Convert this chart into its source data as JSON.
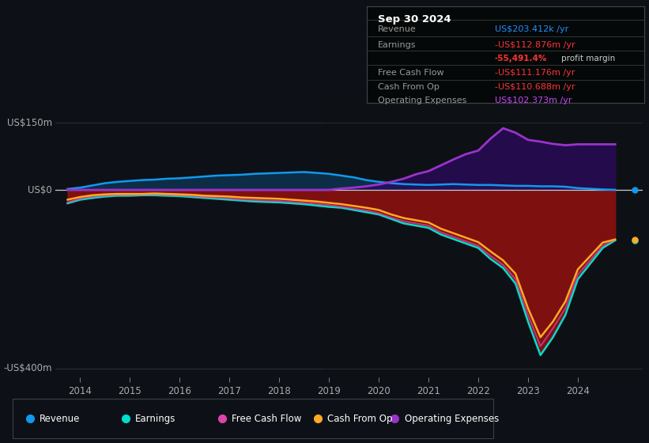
{
  "bg_color": "#0d1117",
  "plot_bg_color": "#0d1117",
  "ylim": [
    -420,
    200
  ],
  "xlim_start": 2013.5,
  "xlim_end": 2025.3,
  "xticks": [
    2014,
    2015,
    2016,
    2017,
    2018,
    2019,
    2020,
    2021,
    2022,
    2023,
    2024
  ],
  "ylabel_pos": "US$150m",
  "ylabel_neg": "-US$400m",
  "y_zero_label": "US$0",
  "info_box": {
    "date": "Sep 30 2024",
    "rows": [
      {
        "label": "Revenue",
        "value": "US$203.412k /yr",
        "vcolor": "#1e90ff"
      },
      {
        "label": "Earnings",
        "value": "-US$112.876m /yr",
        "vcolor": "#ff3333"
      },
      {
        "label": "",
        "value": "-55,491.4% profit margin",
        "vcolor": "#ff3333"
      },
      {
        "label": "Free Cash Flow",
        "value": "-US$111.176m /yr",
        "vcolor": "#ff3333"
      },
      {
        "label": "Cash From Op",
        "value": "-US$110.688m /yr",
        "vcolor": "#ff3333"
      },
      {
        "label": "Operating Expenses",
        "value": "US$102.373m /yr",
        "vcolor": "#cc44ff"
      }
    ]
  },
  "legend": [
    {
      "label": "Revenue",
      "color": "#1199ee"
    },
    {
      "label": "Earnings",
      "color": "#00ddcc"
    },
    {
      "label": "Free Cash Flow",
      "color": "#dd44aa"
    },
    {
      "label": "Cash From Op",
      "color": "#ffaa22"
    },
    {
      "label": "Operating Expenses",
      "color": "#9933cc"
    }
  ],
  "series": {
    "years": [
      2013.75,
      2014.0,
      2014.25,
      2014.5,
      2014.75,
      2015.0,
      2015.25,
      2015.5,
      2015.75,
      2016.0,
      2016.25,
      2016.5,
      2016.75,
      2017.0,
      2017.25,
      2017.5,
      2017.75,
      2018.0,
      2018.25,
      2018.5,
      2018.75,
      2019.0,
      2019.25,
      2019.5,
      2019.75,
      2020.0,
      2020.25,
      2020.5,
      2020.75,
      2021.0,
      2021.25,
      2021.5,
      2021.75,
      2022.0,
      2022.25,
      2022.5,
      2022.75,
      2023.0,
      2023.25,
      2023.5,
      2023.75,
      2024.0,
      2024.5,
      2024.75
    ],
    "revenue": [
      2,
      5,
      10,
      15,
      18,
      20,
      22,
      23,
      25,
      26,
      28,
      30,
      32,
      33,
      34,
      36,
      37,
      38,
      39,
      40,
      38,
      36,
      32,
      28,
      22,
      18,
      15,
      13,
      12,
      11,
      12,
      13,
      12,
      11,
      11,
      10,
      9,
      9,
      8,
      8,
      7,
      4,
      1,
      0.2
    ],
    "earnings": [
      -30,
      -22,
      -18,
      -15,
      -13,
      -13,
      -12,
      -12,
      -13,
      -14,
      -16,
      -18,
      -20,
      -22,
      -24,
      -26,
      -27,
      -28,
      -30,
      -32,
      -35,
      -38,
      -40,
      -45,
      -50,
      -55,
      -65,
      -75,
      -80,
      -85,
      -100,
      -110,
      -120,
      -130,
      -155,
      -175,
      -210,
      -295,
      -370,
      -330,
      -280,
      -200,
      -130,
      -113
    ],
    "free_cash_flow": [
      -28,
      -20,
      -15,
      -13,
      -11,
      -11,
      -11,
      -10,
      -11,
      -12,
      -14,
      -16,
      -18,
      -19,
      -22,
      -23,
      -24,
      -25,
      -27,
      -29,
      -31,
      -34,
      -38,
      -42,
      -46,
      -52,
      -62,
      -70,
      -75,
      -80,
      -95,
      -105,
      -115,
      -125,
      -148,
      -168,
      -200,
      -280,
      -350,
      -310,
      -265,
      -190,
      -125,
      -111
    ],
    "cash_from_op": [
      -22,
      -16,
      -12,
      -10,
      -9,
      -9,
      -9,
      -8,
      -9,
      -10,
      -11,
      -13,
      -14,
      -15,
      -17,
      -18,
      -19,
      -20,
      -22,
      -24,
      -26,
      -29,
      -32,
      -36,
      -40,
      -45,
      -55,
      -63,
      -68,
      -73,
      -87,
      -97,
      -107,
      -117,
      -138,
      -158,
      -188,
      -265,
      -330,
      -295,
      -250,
      -178,
      -118,
      -111
    ],
    "op_expenses": [
      0,
      0,
      0,
      0,
      0,
      0,
      0,
      0,
      0,
      0,
      0,
      0,
      0,
      0,
      0,
      0,
      0,
      0,
      0,
      0,
      0,
      0,
      3,
      5,
      8,
      12,
      18,
      25,
      35,
      42,
      55,
      68,
      80,
      88,
      115,
      138,
      128,
      112,
      108,
      103,
      100,
      102,
      102,
      102
    ]
  }
}
